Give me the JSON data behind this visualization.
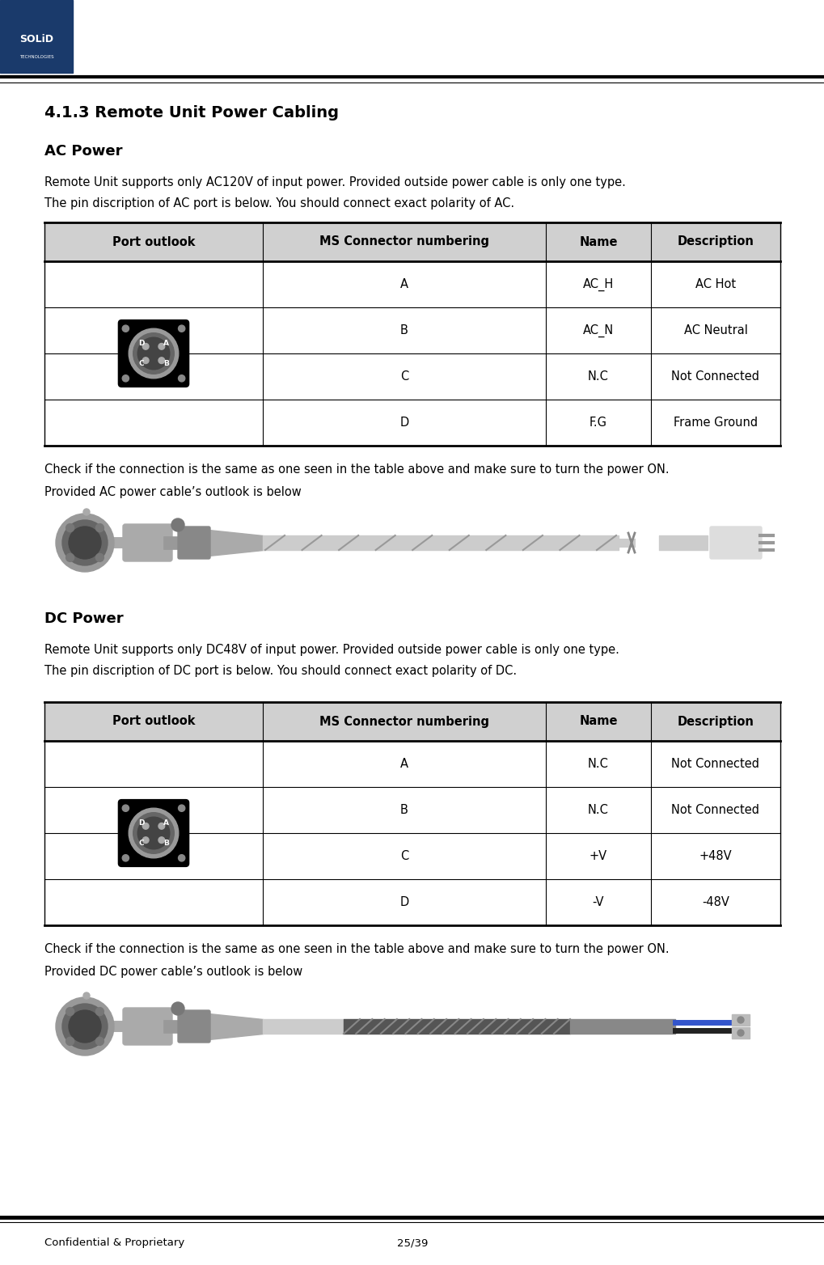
{
  "title": "4.1.3 Remote Unit Power Cabling",
  "ac_heading": "AC Power",
  "dc_heading": "DC Power",
  "ac_desc1": "Remote Unit supports only AC120V of input power. Provided outside power cable is only one type.",
  "ac_desc2": "The pin discription of AC port is below. You should connect exact polarity of AC.",
  "dc_desc1": "Remote Unit supports only DC48V of input power. Provided outside power cable is only one type.",
  "dc_desc2": "The pin discription of DC port is below. You should connect exact polarity of DC.",
  "ac_check": "Check if the connection is the same as one seen in the table above and make sure to turn the power ON.",
  "ac_cable": "Provided AC power cable’s outlook is below",
  "dc_check": "Check if the connection is the same as one seen in the table above and make sure to turn the power ON.",
  "dc_cable": "Provided DC power cable’s outlook is below",
  "table_headers": [
    "Port outlook",
    "MS Connector numbering",
    "Name",
    "Description"
  ],
  "ac_rows": [
    [
      "A",
      "AC_H",
      "AC Hot"
    ],
    [
      "B",
      "AC_N",
      "AC Neutral"
    ],
    [
      "C",
      "N.C",
      "Not Connected"
    ],
    [
      "D",
      "F.G",
      "Frame Ground"
    ]
  ],
  "dc_rows": [
    [
      "A",
      "N.C",
      "Not Connected"
    ],
    [
      "B",
      "N.C",
      "Not Connected"
    ],
    [
      "C",
      "+V",
      "+48V"
    ],
    [
      "D",
      "-V",
      "-48V"
    ]
  ],
  "header_bg": "#d0d0d0",
  "table_border": "#000000",
  "logo_blue": "#1a3a6b",
  "footer_text_left": "Confidential & Proprietary",
  "footer_text_right": "25/39",
  "bg_color": "#ffffff",
  "header_line_color": "#000000",
  "body_text_color": "#000000"
}
